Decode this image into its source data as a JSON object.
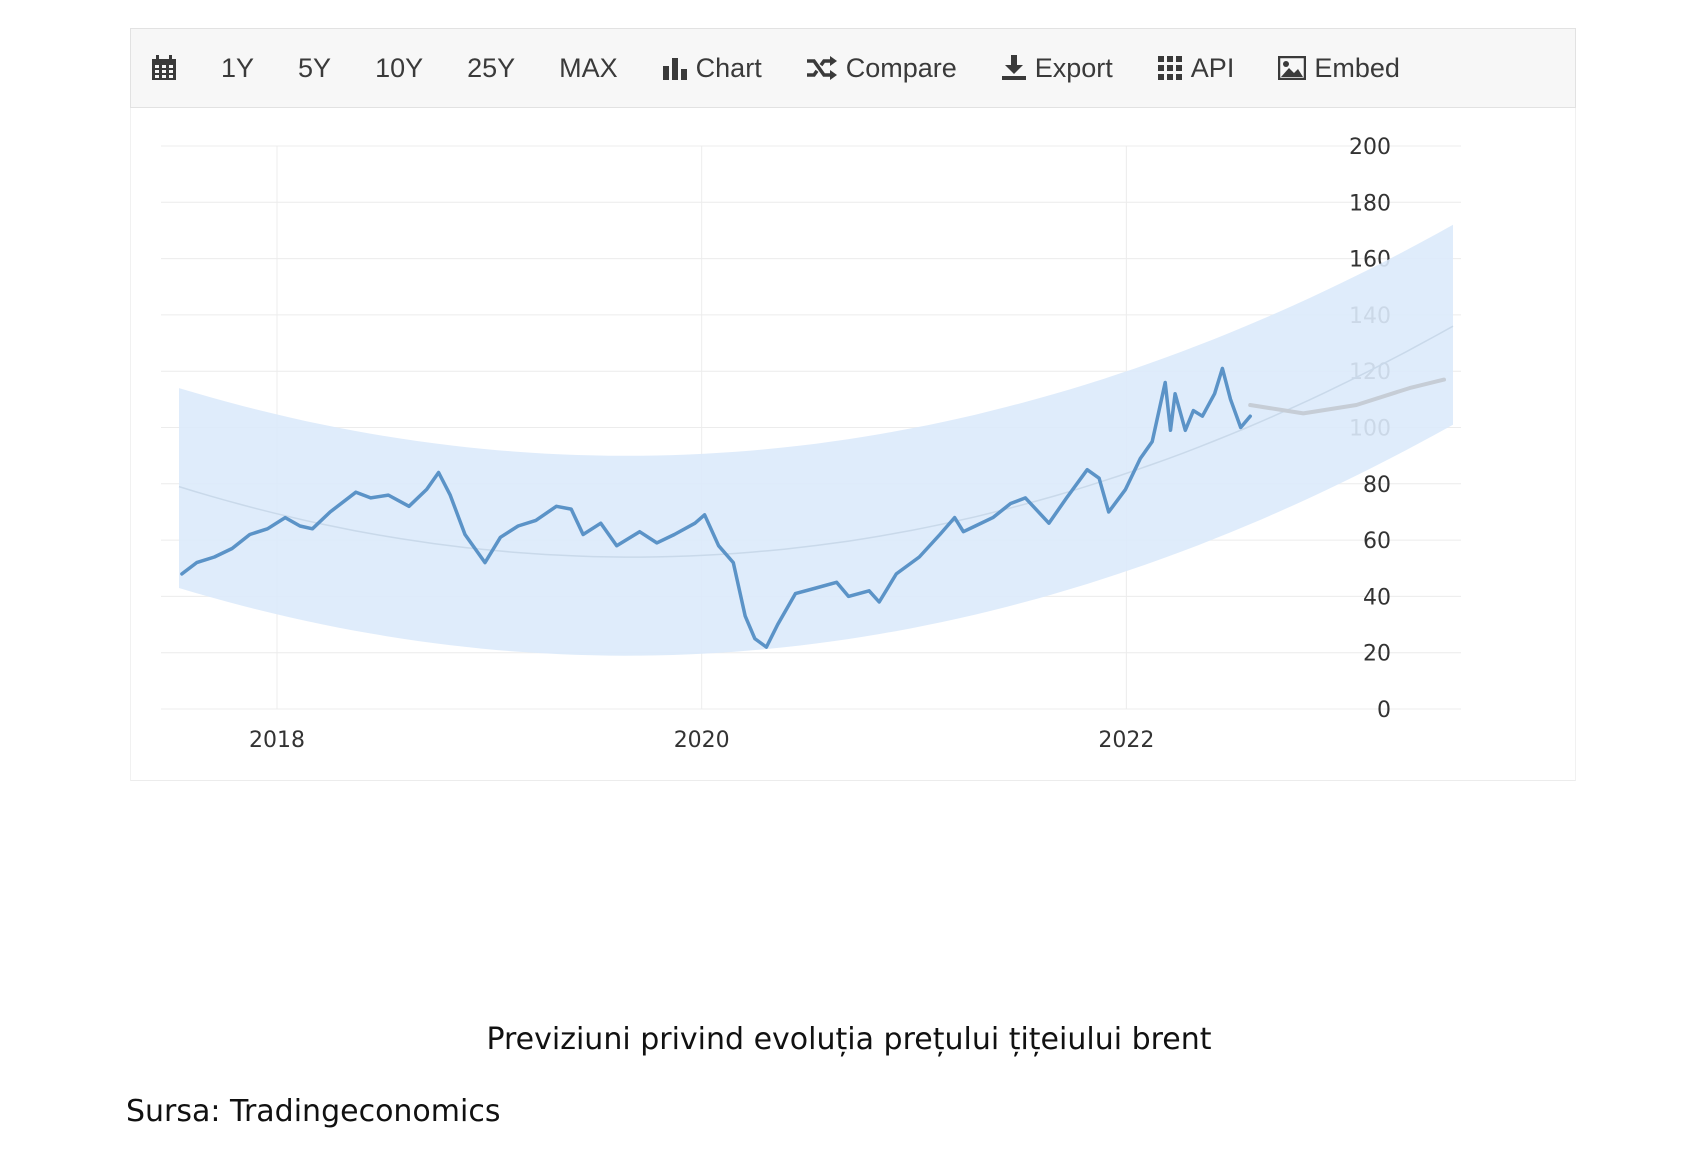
{
  "toolbar": {
    "calendar_icon": "calendar-icon",
    "ranges": [
      "1Y",
      "5Y",
      "10Y",
      "25Y",
      "MAX"
    ],
    "chart_label": "Chart",
    "compare_label": "Compare",
    "export_label": "Export",
    "api_label": "API",
    "embed_label": "Embed"
  },
  "colors": {
    "line": "#5b93c7",
    "band": "#dceafb",
    "forecast": "#c6cdd6",
    "grid": "#ececec"
  },
  "chart_data": {
    "type": "line",
    "x_ticks": [
      "2018",
      "2020",
      "2022"
    ],
    "y_ticks": [
      0,
      20,
      40,
      60,
      80,
      100,
      120,
      140,
      160,
      180,
      200
    ],
    "ylim": [
      0,
      200
    ],
    "xlim": [
      "2017-07-15",
      "2023-07-15"
    ],
    "y_axis_position": "right",
    "grid": true,
    "series": [
      {
        "role": "actual",
        "points": [
          [
            "2017-07-20",
            48
          ],
          [
            "2017-08-15",
            52
          ],
          [
            "2017-09-15",
            54
          ],
          [
            "2017-10-15",
            57
          ],
          [
            "2017-11-15",
            62
          ],
          [
            "2017-12-15",
            64
          ],
          [
            "2018-01-15",
            68
          ],
          [
            "2018-02-10",
            65
          ],
          [
            "2018-03-01",
            64
          ],
          [
            "2018-04-01",
            70
          ],
          [
            "2018-05-15",
            77
          ],
          [
            "2018-06-10",
            75
          ],
          [
            "2018-07-10",
            76
          ],
          [
            "2018-08-15",
            72
          ],
          [
            "2018-09-15",
            78
          ],
          [
            "2018-10-05",
            84
          ],
          [
            "2018-10-25",
            76
          ],
          [
            "2018-11-20",
            62
          ],
          [
            "2018-12-24",
            52
          ],
          [
            "2019-01-20",
            61
          ],
          [
            "2019-02-20",
            65
          ],
          [
            "2019-03-20",
            67
          ],
          [
            "2019-04-25",
            72
          ],
          [
            "2019-05-20",
            71
          ],
          [
            "2019-06-10",
            62
          ],
          [
            "2019-07-10",
            66
          ],
          [
            "2019-08-07",
            58
          ],
          [
            "2019-09-16",
            63
          ],
          [
            "2019-10-15",
            59
          ],
          [
            "2019-11-15",
            62
          ],
          [
            "2019-12-20",
            66
          ],
          [
            "2020-01-06",
            69
          ],
          [
            "2020-01-30",
            58
          ],
          [
            "2020-02-25",
            52
          ],
          [
            "2020-03-15",
            33
          ],
          [
            "2020-04-01",
            25
          ],
          [
            "2020-04-21",
            22
          ],
          [
            "2020-05-10",
            30
          ],
          [
            "2020-06-10",
            41
          ],
          [
            "2020-07-15",
            43
          ],
          [
            "2020-08-20",
            45
          ],
          [
            "2020-09-10",
            40
          ],
          [
            "2020-10-15",
            42
          ],
          [
            "2020-11-02",
            38
          ],
          [
            "2020-12-01",
            48
          ],
          [
            "2021-01-10",
            54
          ],
          [
            "2021-02-15",
            62
          ],
          [
            "2021-03-10",
            68
          ],
          [
            "2021-03-25",
            63
          ],
          [
            "2021-04-15",
            65
          ],
          [
            "2021-05-15",
            68
          ],
          [
            "2021-06-15",
            73
          ],
          [
            "2021-07-10",
            75
          ],
          [
            "2021-08-20",
            66
          ],
          [
            "2021-09-20",
            75
          ],
          [
            "2021-10-25",
            85
          ],
          [
            "2021-11-15",
            82
          ],
          [
            "2021-12-01",
            70
          ],
          [
            "2021-12-30",
            78
          ],
          [
            "2022-01-25",
            89
          ],
          [
            "2022-02-15",
            95
          ],
          [
            "2022-03-07",
            116
          ],
          [
            "2022-03-16",
            99
          ],
          [
            "2022-03-24",
            112
          ],
          [
            "2022-04-11",
            99
          ],
          [
            "2022-04-25",
            106
          ],
          [
            "2022-05-10",
            104
          ],
          [
            "2022-05-31",
            112
          ],
          [
            "2022-06-14",
            121
          ],
          [
            "2022-06-28",
            110
          ],
          [
            "2022-07-15",
            100
          ],
          [
            "2022-08-01",
            104
          ]
        ]
      },
      {
        "role": "forecast",
        "points": [
          [
            "2022-08-01",
            108
          ],
          [
            "2022-11-01",
            105
          ],
          [
            "2023-02-01",
            108
          ],
          [
            "2023-05-01",
            114
          ],
          [
            "2023-06-30",
            117
          ]
        ]
      }
    ],
    "band_upper": [
      [
        "2017-07-15",
        114
      ],
      [
        "2019-10-01",
        90
      ],
      [
        "2023-07-15",
        172
      ]
    ],
    "band_lower": [
      [
        "2017-07-15",
        43
      ],
      [
        "2019-10-01",
        19
      ],
      [
        "2023-07-15",
        101
      ]
    ],
    "trend": [
      [
        "2017-07-15",
        79
      ],
      [
        "2019-10-01",
        54
      ],
      [
        "2023-07-15",
        136
      ]
    ]
  },
  "caption": "Previziuni privind evoluția prețului țițeiului brent",
  "source": "Sursa: Tradingeconomics"
}
